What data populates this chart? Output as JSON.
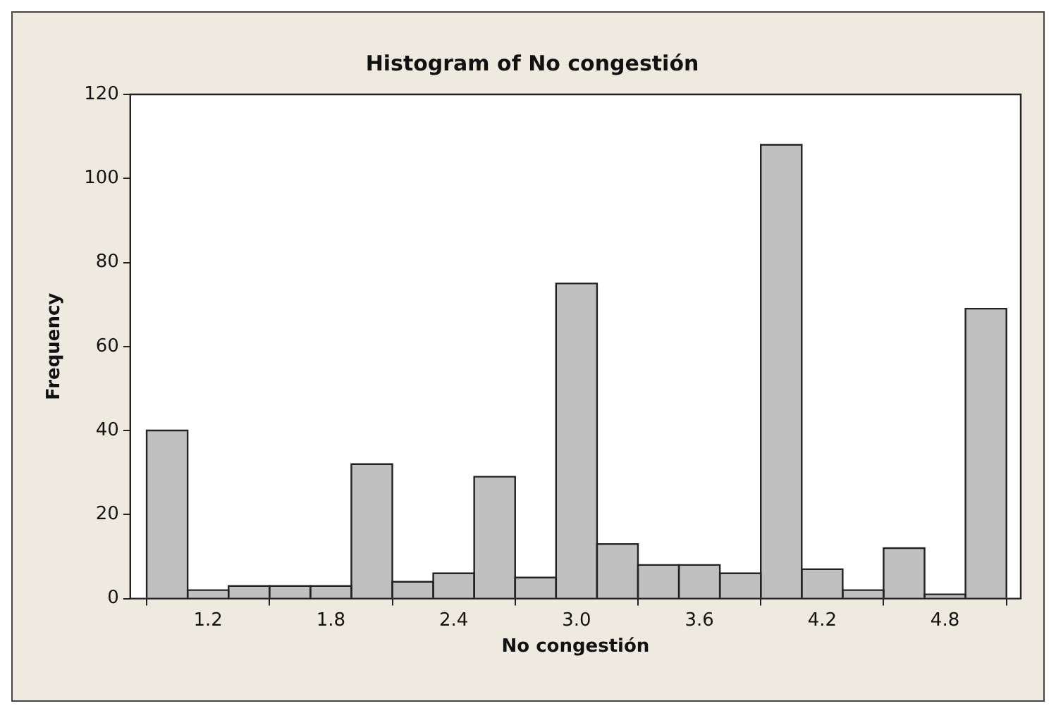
{
  "chart_data": {
    "type": "histogram",
    "title": "Histogram of No congestión",
    "xlabel": "No congestión",
    "ylabel": "Frequency",
    "bins": [
      0.9,
      1.1,
      1.3,
      1.5,
      1.7,
      1.9,
      2.1,
      2.3,
      2.5,
      2.7,
      2.9,
      3.1,
      3.3,
      3.5,
      3.7,
      3.9,
      4.1,
      4.3,
      4.5,
      4.7,
      4.9,
      5.1
    ],
    "values": [
      40,
      2,
      3,
      3,
      3,
      32,
      4,
      6,
      29,
      5,
      75,
      13,
      8,
      8,
      6,
      108,
      7,
      2,
      12,
      1,
      69
    ],
    "color": "#c0c0c0",
    "xlim": [
      0.82,
      5.17
    ],
    "xticks": [
      1.2,
      1.8,
      2.4,
      {
        "value": 3,
        "label": "3.0"
      },
      3.6,
      4.2,
      4.8
    ],
    "ylim": [
      0,
      120
    ],
    "yticks": [
      0,
      20,
      40,
      60,
      80,
      100,
      120
    ],
    "grid": false
  }
}
